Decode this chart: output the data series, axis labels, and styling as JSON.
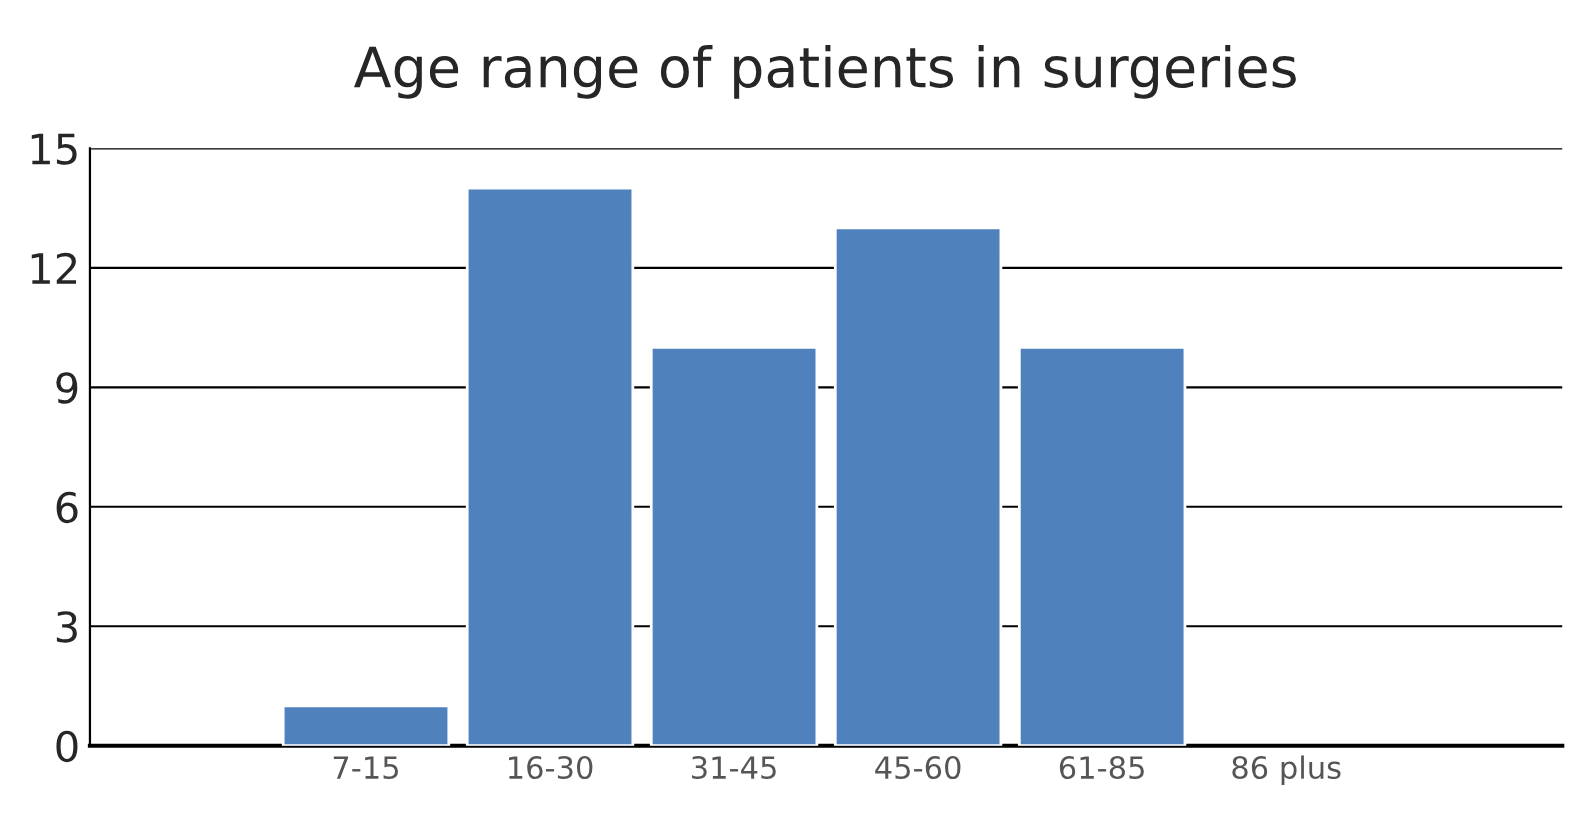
{
  "chart_data": {
    "type": "bar",
    "title": "Age range of patients in surgeries",
    "categories": [
      null,
      "7-15",
      "16-30",
      "31-45",
      "45-60",
      "61-85",
      "86 plus",
      null
    ],
    "values": [
      null,
      1,
      14,
      10,
      13,
      10,
      null,
      null
    ],
    "color": "#4f81bd",
    "ylim": [
      0,
      15
    ],
    "yticks": [
      0,
      3,
      6,
      9,
      12,
      15
    ],
    "grid": "y"
  }
}
